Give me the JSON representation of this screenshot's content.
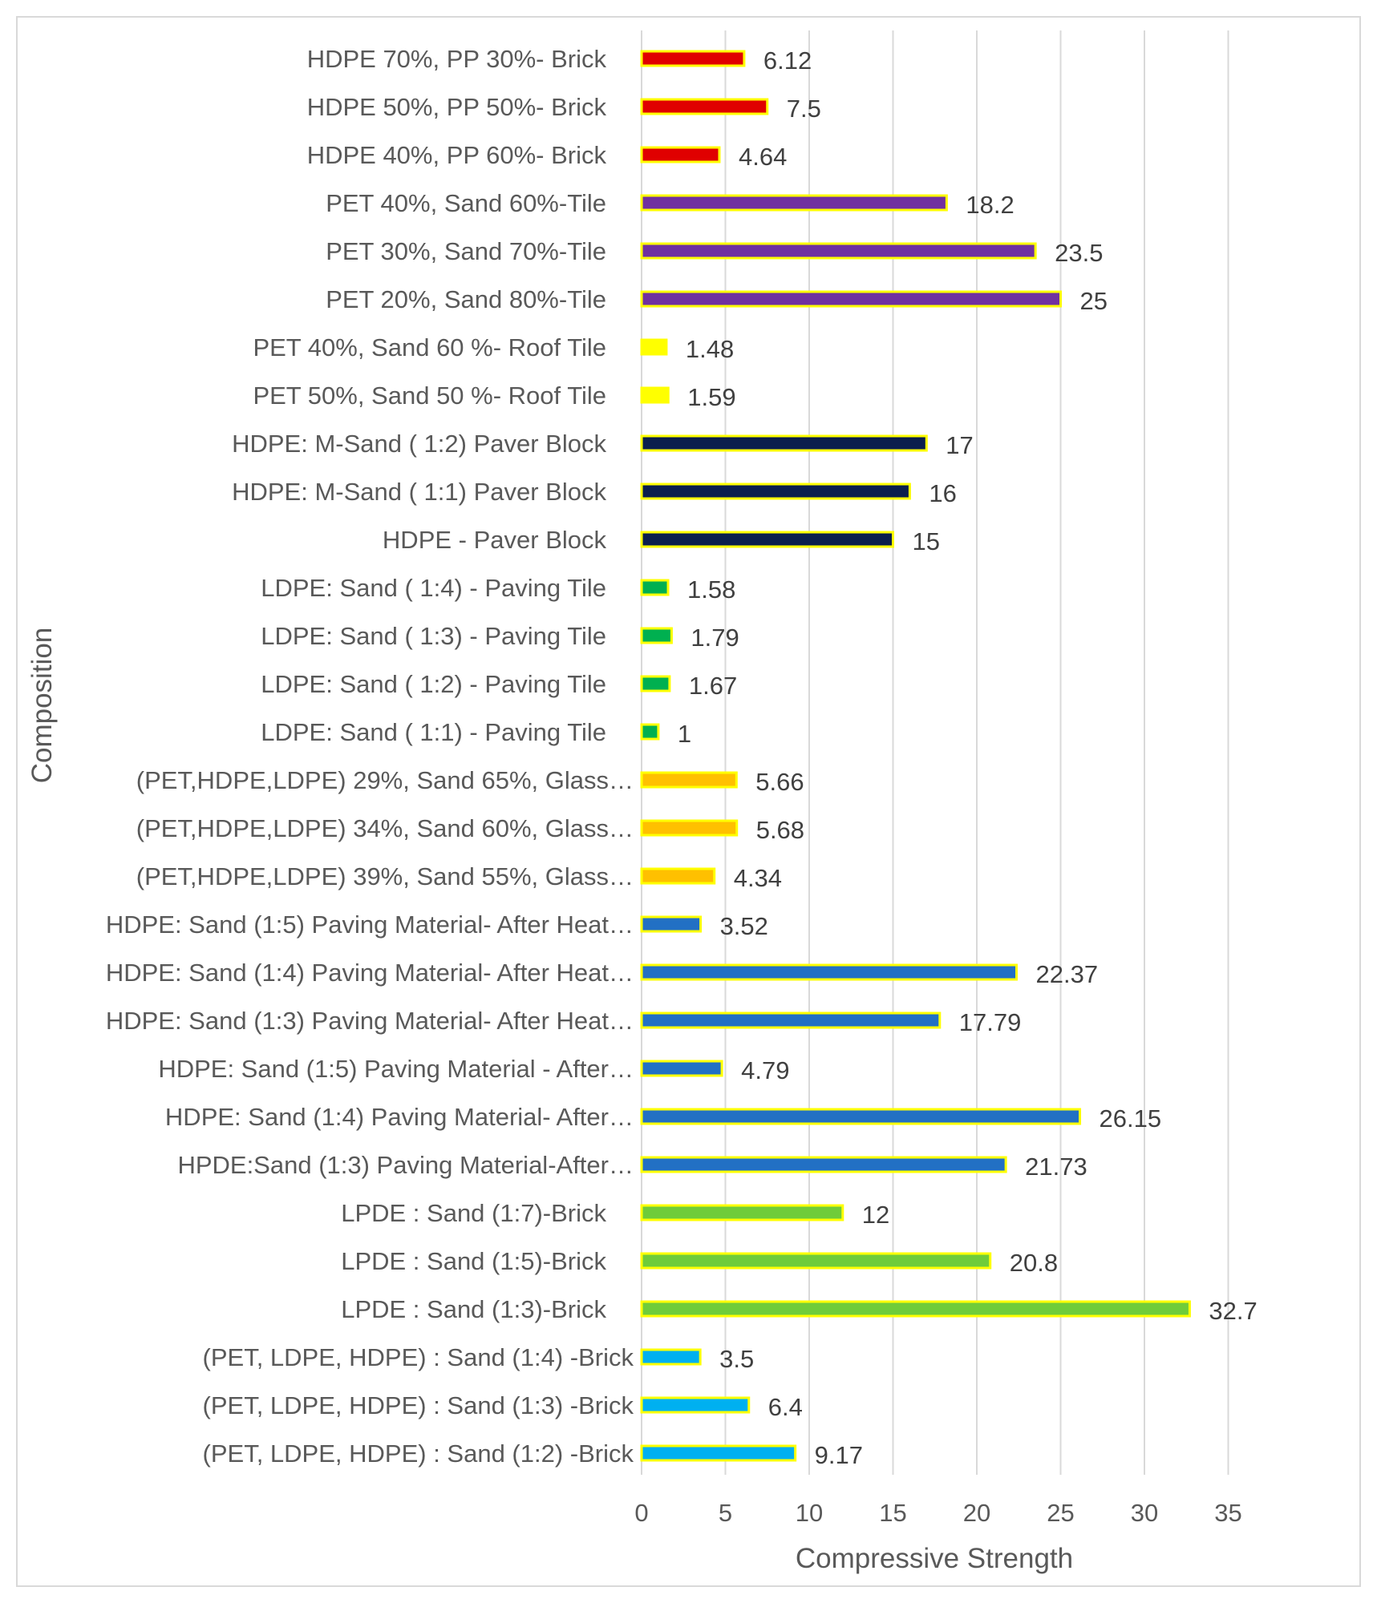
{
  "chart_data": {
    "type": "bar",
    "orientation": "horizontal",
    "xlabel": "Compressive Strength",
    "ylabel": "Composition",
    "xlim": [
      0,
      35
    ],
    "xticks": [
      0,
      5,
      10,
      15,
      20,
      25,
      30,
      35
    ],
    "grid": "vertical",
    "bar_border_color": "#ffff00",
    "categories": [
      "HDPE 70%, PP 30%- Brick",
      "HDPE 50%, PP 50%- Brick",
      "HDPE 40%, PP 60%- Brick",
      "PET 40%, Sand 60%-Tile",
      "PET 30%, Sand 70%-Tile",
      "PET 20%, Sand 80%-Tile",
      "PET 40%, Sand 60 %- Roof Tile",
      "PET 50%, Sand 50 %- Roof Tile",
      "HDPE: M-Sand ( 1:2) Paver Block",
      "HDPE: M-Sand ( 1:1) Paver Block",
      "HDPE  - Paver Block",
      "LDPE: Sand ( 1:4) - Paving Tile",
      "LDPE: Sand ( 1:3) - Paving Tile",
      "LDPE: Sand ( 1:2) - Paving Tile",
      "LDPE: Sand ( 1:1) - Paving Tile",
      "(PET,HDPE,LDPE) 29%, Sand 65%, Glass…",
      "(PET,HDPE,LDPE) 34%, Sand 60%, Glass…",
      "(PET,HDPE,LDPE) 39%, Sand 55%, Glass…",
      "HDPE: Sand (1:5) Paving Material- After Heat…",
      "HDPE: Sand (1:4) Paving Material- After Heat…",
      "HDPE: Sand (1:3) Paving Material- After Heat…",
      "HDPE: Sand (1:5) Paving Material - After…",
      "HDPE: Sand (1:4) Paving Material- After…",
      "HPDE:Sand (1:3) Paving Material-After…",
      "LPDE : Sand (1:7)-Brick",
      "LPDE : Sand (1:5)-Brick",
      "LPDE : Sand (1:3)-Brick",
      "(PET, LDPE, HDPE) : Sand (1:4) -Brick",
      "(PET, LDPE, HDPE) : Sand  (1:3) -Brick",
      "(PET, LDPE, HDPE) : Sand (1:2) -Brick"
    ],
    "values": [
      6.12,
      7.5,
      4.64,
      18.2,
      23.5,
      25,
      1.48,
      1.59,
      17,
      16,
      15,
      1.58,
      1.79,
      1.67,
      1,
      5.66,
      5.68,
      4.34,
      3.52,
      22.37,
      17.79,
      4.79,
      26.15,
      21.73,
      12,
      20.8,
      32.7,
      3.5,
      6.4,
      9.17
    ],
    "value_labels": [
      "6.12",
      "7.5",
      "4.64",
      "18.2",
      "23.5",
      "25",
      "1.48",
      "1.59",
      "17",
      "16",
      "15",
      "1.58",
      "1.79",
      "1.67",
      "1",
      "5.66",
      "5.68",
      "4.34",
      "3.52",
      "22.37",
      "17.79",
      "4.79",
      "26.15",
      "21.73",
      "12",
      "20.8",
      "32.7",
      "3.5",
      "6.4",
      "9.17"
    ],
    "colors": [
      "#e00000",
      "#e00000",
      "#e00000",
      "#7030a0",
      "#7030a0",
      "#7030a0",
      "#ffff00",
      "#ffff00",
      "#0b1f4d",
      "#0b1f4d",
      "#0b1f4d",
      "#00b050",
      "#00b050",
      "#00b050",
      "#00b050",
      "#ffc000",
      "#ffc000",
      "#ffc000",
      "#2270c4",
      "#2270c4",
      "#2270c4",
      "#2270c4",
      "#2270c4",
      "#2270c4",
      "#6fcc3a",
      "#6fcc3a",
      "#6fcc3a",
      "#00b0f0",
      "#00b0f0",
      "#00b0f0"
    ]
  }
}
